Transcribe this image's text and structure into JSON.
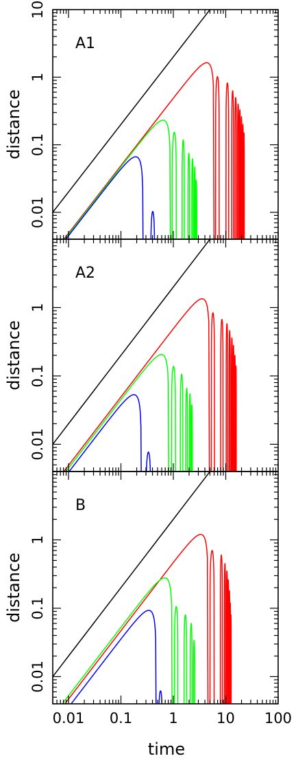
{
  "chart_data": {
    "type": "line",
    "x_axis": {
      "label": "time",
      "scale": "log",
      "range": [
        0.005,
        100
      ],
      "tick_labels": [
        "0.01",
        "0.1",
        "1",
        "10",
        "100"
      ]
    },
    "y_axis": {
      "label": "distance",
      "scale": "log",
      "range": [
        0.004,
        10
      ]
    },
    "colors": {
      "reference": "#000000",
      "outer": "#ff0000",
      "middle": "#00ff00",
      "inner": "#0000ff"
    },
    "panels": [
      {
        "label": "A1",
        "y_tick_labels": [
          "10",
          "1",
          "0.1",
          "0.01"
        ],
        "series": [
          {
            "color_key": "reference",
            "kind": "power",
            "coef": 2.0,
            "slope": 1.0,
            "x_start": 0.005,
            "x_end": 100
          },
          {
            "color_key": "outer",
            "kind": "collapse",
            "peak_x": 2.9,
            "peak_y": 1.42,
            "collapse_x": 6.0,
            "rebounds": [
              [
                6.4,
                7.5,
                1.02
              ],
              [
                10.1,
                11.4,
                0.82
              ],
              [
                13.0,
                14.1,
                0.63
              ],
              [
                15.0,
                16.0,
                0.5
              ],
              [
                16.8,
                17.7,
                0.4
              ],
              [
                18.2,
                19.0,
                0.33
              ],
              [
                19.6,
                20.3,
                0.26
              ],
              [
                20.9,
                21.6,
                0.2
              ],
              [
                22.0,
                22.6,
                0.15
              ]
            ]
          },
          {
            "color_key": "middle",
            "kind": "collapse",
            "peak_x": 0.52,
            "peak_y": 0.245,
            "collapse_x": 0.88,
            "rebounds": [
              [
                0.95,
                1.14,
                0.153
              ],
              [
                1.47,
                1.62,
                0.118
              ],
              [
                1.9,
                2.05,
                0.075
              ],
              [
                2.25,
                2.38,
                0.062
              ],
              [
                2.5,
                2.62,
                0.047
              ],
              [
                2.68,
                2.8,
                0.03
              ]
            ]
          },
          {
            "color_key": "inner",
            "kind": "collapse",
            "peak_x": 0.1,
            "peak_y": 0.045,
            "collapse_x": 0.265,
            "rebounds": [
              [
                0.37,
                0.44,
                0.0103
              ]
            ]
          }
        ]
      },
      {
        "label": "A2",
        "y_tick_labels": [
          "1",
          "0.1",
          "0.01"
        ],
        "series": [
          {
            "color_key": "reference",
            "kind": "power",
            "coef": 2.0,
            "slope": 1.0,
            "x_start": 0.005,
            "x_end": 100
          },
          {
            "color_key": "outer",
            "kind": "collapse",
            "peak_x": 2.6,
            "peak_y": 1.28,
            "collapse_x": 4.9,
            "rebounds": [
              [
                5.3,
                6.1,
                0.84
              ],
              [
                8.0,
                8.9,
                0.67
              ],
              [
                10.2,
                10.9,
                0.58
              ],
              [
                11.6,
                12.2,
                0.46
              ],
              [
                12.8,
                13.4,
                0.36
              ],
              [
                13.8,
                14.3,
                0.28
              ],
              [
                14.7,
                15.2,
                0.2
              ],
              [
                15.5,
                15.9,
                0.14
              ]
            ]
          },
          {
            "color_key": "middle",
            "kind": "collapse",
            "peak_x": 0.5,
            "peak_y": 0.225,
            "collapse_x": 0.82,
            "rebounds": [
              [
                0.92,
                1.1,
                0.138
              ],
              [
                1.36,
                1.52,
                0.106
              ],
              [
                1.73,
                1.87,
                0.066
              ],
              [
                2.02,
                2.13,
                0.055
              ],
              [
                2.2,
                2.3,
                0.038
              ]
            ]
          },
          {
            "color_key": "inner",
            "kind": "collapse",
            "peak_x": 0.095,
            "peak_y": 0.037,
            "collapse_x": 0.245,
            "rebounds": [
              [
                0.3,
                0.37,
                0.0077
              ]
            ]
          }
        ]
      },
      {
        "label": "B",
        "y_tick_labels": [
          "1",
          "0.1",
          "0.01"
        ],
        "series": [
          {
            "color_key": "reference",
            "kind": "power",
            "coef": 2.0,
            "slope": 1.0,
            "x_start": 0.005,
            "x_end": 100
          },
          {
            "color_key": "outer",
            "kind": "collapse",
            "peak_x": 2.6,
            "peak_y": 1.22,
            "collapse_x": 4.6,
            "rebounds": [
              [
                5.0,
                6.0,
                0.7
              ],
              [
                7.9,
                8.6,
                0.6
              ],
              [
                9.4,
                9.9,
                0.45
              ],
              [
                10.3,
                10.8,
                0.35
              ],
              [
                11.0,
                11.4,
                0.26
              ],
              [
                11.6,
                11.95,
                0.18
              ],
              [
                12.05,
                12.35,
                0.12
              ],
              [
                12.45,
                12.7,
                0.08
              ]
            ]
          },
          {
            "color_key": "middle",
            "kind": "collapse",
            "peak_x": 0.5,
            "peak_y": 0.263,
            "collapse_x": 0.95,
            "rebounds": [
              [
                1.05,
                1.22,
                0.106
              ],
              [
                1.6,
                1.8,
                0.08
              ],
              [
                2.1,
                2.28,
                0.06
              ],
              [
                2.42,
                2.56,
                0.034
              ]
            ]
          },
          {
            "color_key": "inner",
            "kind": "collapse",
            "peak_x": 0.16,
            "peak_y": 0.057,
            "collapse_x": 0.47,
            "rebounds": [
              [
                0.52,
                0.62,
                0.0062
              ]
            ]
          }
        ]
      }
    ]
  }
}
